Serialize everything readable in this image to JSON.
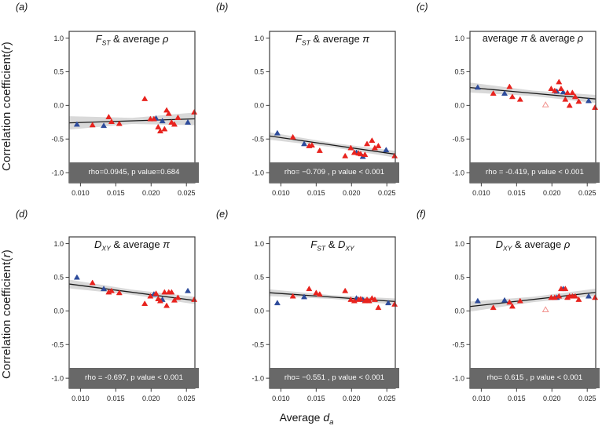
{
  "axes": {
    "y_label_pre": "Correlation coefficient(",
    "y_label_italic": "r",
    "y_label_post": ")",
    "x_label_pre": "Average ",
    "x_label_italic": "d",
    "x_label_sub": "a",
    "y_tick_values": [
      1.0,
      0.5,
      0.0,
      -0.5,
      -1.0
    ],
    "y_tick_labels": [
      "1.0",
      "0.5",
      "0.0",
      "-0.5",
      "-1.0"
    ],
    "x_tick_values": [
      0.01,
      0.015,
      0.02,
      0.025
    ],
    "x_tick_labels": [
      "0.010",
      "0.015",
      "0.020",
      "0.025"
    ]
  },
  "colors": {
    "red": "#e8231e",
    "blue": "#2d4b9b",
    "open_red": "#f2938f",
    "band": "#d9d9d9",
    "line": "#1a1a1a",
    "box": "#3d3d3d",
    "banner_bg": "#686868",
    "banner_text": "#ffffff"
  },
  "chart_data": [
    {
      "id": "a",
      "label": "(a)",
      "type": "scatter",
      "title_segments": [
        {
          "t": "F",
          "s": "i"
        },
        {
          "t": "ST",
          "s": "sub"
        },
        {
          "t": " & average ",
          "s": ""
        },
        {
          "t": "ρ",
          "s": "i"
        }
      ],
      "banner": "rho=0.0945, p value=0.684",
      "xlim": [
        0.0084,
        0.0262
      ],
      "ylim": [
        -1.15,
        1.1
      ],
      "regression": {
        "x": [
          0.0084,
          0.0262
        ],
        "y": [
          -0.26,
          -0.2
        ]
      },
      "band": {
        "x": [
          0.0084,
          0.0173,
          0.0262
        ],
        "half": [
          0.1,
          0.045,
          0.095
        ]
      },
      "series": [
        {
          "name": "blue-filled",
          "color": "#2d4b9b",
          "open": false,
          "points": [
            [
              0.0095,
              -0.28
            ],
            [
              0.0133,
              -0.3
            ],
            [
              0.0207,
              -0.19
            ],
            [
              0.0216,
              -0.23
            ],
            [
              0.0252,
              -0.25
            ]
          ]
        },
        {
          "name": "red-filled",
          "color": "#e8231e",
          "open": false,
          "points": [
            [
              0.0117,
              -0.29
            ],
            [
              0.014,
              -0.17
            ],
            [
              0.0144,
              -0.24
            ],
            [
              0.0155,
              -0.27
            ],
            [
              0.0191,
              0.1
            ],
            [
              0.0199,
              -0.2
            ],
            [
              0.0204,
              -0.2
            ],
            [
              0.021,
              -0.32
            ],
            [
              0.0213,
              -0.38
            ],
            [
              0.0219,
              -0.35
            ],
            [
              0.0222,
              -0.07
            ],
            [
              0.0225,
              -0.12
            ],
            [
              0.0229,
              -0.25
            ],
            [
              0.0233,
              -0.28
            ],
            [
              0.0238,
              -0.18
            ],
            [
              0.0261,
              -0.1
            ]
          ]
        }
      ]
    },
    {
      "id": "b",
      "label": "(b)",
      "type": "scatter",
      "title_segments": [
        {
          "t": "F",
          "s": "i"
        },
        {
          "t": "ST",
          "s": "sub"
        },
        {
          "t": " & average ",
          "s": ""
        },
        {
          "t": "π",
          "s": "i"
        }
      ],
      "banner": "rho= −0.709 , p value < 0.001",
      "xlim": [
        0.0084,
        0.0262
      ],
      "ylim": [
        -1.15,
        1.1
      ],
      "regression": {
        "x": [
          0.0084,
          0.0262
        ],
        "y": [
          -0.455,
          -0.725
        ]
      },
      "band": {
        "x": [
          0.0084,
          0.0173,
          0.0262
        ],
        "half": [
          0.055,
          0.032,
          0.05
        ]
      },
      "series": [
        {
          "name": "blue-filled",
          "color": "#2d4b9b",
          "open": false,
          "points": [
            [
              0.0095,
              -0.41
            ],
            [
              0.0133,
              -0.57
            ],
            [
              0.0207,
              -0.7
            ],
            [
              0.0216,
              -0.76
            ],
            [
              0.0249,
              -0.66
            ]
          ]
        },
        {
          "name": "red-filled",
          "color": "#e8231e",
          "open": false,
          "points": [
            [
              0.0117,
              -0.47
            ],
            [
              0.014,
              -0.6
            ],
            [
              0.0144,
              -0.59
            ],
            [
              0.0155,
              -0.67
            ],
            [
              0.0191,
              -0.75
            ],
            [
              0.0199,
              -0.63
            ],
            [
              0.0204,
              -0.7
            ],
            [
              0.021,
              -0.71
            ],
            [
              0.0213,
              -0.72
            ],
            [
              0.0219,
              -0.73
            ],
            [
              0.0222,
              -0.57
            ],
            [
              0.0229,
              -0.52
            ],
            [
              0.0233,
              -0.63
            ],
            [
              0.0238,
              -0.6
            ],
            [
              0.0261,
              -0.75
            ]
          ]
        }
      ]
    },
    {
      "id": "c",
      "label": "(c)",
      "type": "scatter",
      "title_segments": [
        {
          "t": "average ",
          "s": ""
        },
        {
          "t": "π",
          "s": "i"
        },
        {
          "t": " & average ",
          "s": ""
        },
        {
          "t": "ρ",
          "s": "i"
        }
      ],
      "banner": "rho = -0.419, p value < 0.001",
      "xlim": [
        0.0084,
        0.0262
      ],
      "ylim": [
        -1.15,
        1.1
      ],
      "regression": {
        "x": [
          0.0084,
          0.0262
        ],
        "y": [
          0.265,
          0.095
        ]
      },
      "band": {
        "x": [
          0.0084,
          0.0173,
          0.0262
        ],
        "half": [
          0.075,
          0.04,
          0.06
        ]
      },
      "series": [
        {
          "name": "blue-filled",
          "color": "#2d4b9b",
          "open": false,
          "points": [
            [
              0.0095,
              0.27
            ],
            [
              0.0133,
              0.18
            ],
            [
              0.0207,
              0.21
            ],
            [
              0.0216,
              0.2
            ],
            [
              0.0252,
              0.07
            ]
          ]
        },
        {
          "name": "red-filled",
          "color": "#e8231e",
          "open": false,
          "points": [
            [
              0.0117,
              0.18
            ],
            [
              0.014,
              0.28
            ],
            [
              0.0144,
              0.13
            ],
            [
              0.0155,
              0.09
            ],
            [
              0.0199,
              0.25
            ],
            [
              0.0204,
              0.22
            ],
            [
              0.021,
              0.35
            ],
            [
              0.0213,
              0.25
            ],
            [
              0.0219,
              0.09
            ],
            [
              0.0222,
              0.19
            ],
            [
              0.0225,
              0.0
            ],
            [
              0.0229,
              0.19
            ],
            [
              0.0233,
              0.13
            ],
            [
              0.0238,
              0.06
            ],
            [
              0.0261,
              -0.03
            ]
          ]
        },
        {
          "name": "red-open",
          "color": "#f2938f",
          "open": true,
          "points": [
            [
              0.0191,
              0.01
            ]
          ]
        }
      ]
    },
    {
      "id": "d",
      "label": "(d)",
      "type": "scatter",
      "title_segments": [
        {
          "t": "D",
          "s": "i"
        },
        {
          "t": "XY",
          "s": "sub"
        },
        {
          "t": " & average ",
          "s": ""
        },
        {
          "t": "π",
          "s": "i"
        }
      ],
      "banner": "rho = -0.697, p value < 0.001",
      "xlim": [
        0.0084,
        0.0262
      ],
      "ylim": [
        -1.15,
        1.1
      ],
      "regression": {
        "x": [
          0.0084,
          0.0262
        ],
        "y": [
          0.4,
          0.155
        ]
      },
      "band": {
        "x": [
          0.0084,
          0.0173,
          0.0262
        ],
        "half": [
          0.065,
          0.038,
          0.055
        ]
      },
      "series": [
        {
          "name": "blue-filled",
          "color": "#2d4b9b",
          "open": false,
          "points": [
            [
              0.0095,
              0.5
            ],
            [
              0.0133,
              0.33
            ],
            [
              0.0204,
              0.25
            ],
            [
              0.0216,
              0.17
            ],
            [
              0.0252,
              0.3
            ]
          ]
        },
        {
          "name": "red-filled",
          "color": "#e8231e",
          "open": false,
          "points": [
            [
              0.0117,
              0.42
            ],
            [
              0.014,
              0.28
            ],
            [
              0.0144,
              0.3
            ],
            [
              0.0155,
              0.27
            ],
            [
              0.0191,
              0.11
            ],
            [
              0.0199,
              0.22
            ],
            [
              0.0207,
              0.26
            ],
            [
              0.021,
              0.18
            ],
            [
              0.0213,
              0.15
            ],
            [
              0.0219,
              0.28
            ],
            [
              0.0222,
              0.08
            ],
            [
              0.0225,
              0.28
            ],
            [
              0.0229,
              0.28
            ],
            [
              0.0233,
              0.16
            ],
            [
              0.0238,
              0.2
            ],
            [
              0.0261,
              0.17
            ]
          ]
        }
      ]
    },
    {
      "id": "e",
      "label": "(e)",
      "type": "scatter",
      "title_segments": [
        {
          "t": "F",
          "s": "i"
        },
        {
          "t": "ST",
          "s": "sub"
        },
        {
          "t": " & ",
          "s": ""
        },
        {
          "t": "D",
          "s": "i"
        },
        {
          "t": "XY",
          "s": "sub"
        }
      ],
      "banner": "rho= −0.551 , p value < 0.001",
      "xlim": [
        0.0084,
        0.0262
      ],
      "ylim": [
        -1.15,
        1.1
      ],
      "regression": {
        "x": [
          0.0084,
          0.0262
        ],
        "y": [
          0.27,
          0.14
        ]
      },
      "band": {
        "x": [
          0.0084,
          0.0173,
          0.0262
        ],
        "half": [
          0.05,
          0.028,
          0.045
        ]
      },
      "series": [
        {
          "name": "blue-filled",
          "color": "#2d4b9b",
          "open": false,
          "points": [
            [
              0.0095,
              0.12
            ],
            [
              0.0133,
              0.21
            ],
            [
              0.0207,
              0.19
            ],
            [
              0.0216,
              0.17
            ],
            [
              0.0252,
              0.12
            ]
          ]
        },
        {
          "name": "red-filled",
          "color": "#e8231e",
          "open": false,
          "points": [
            [
              0.0117,
              0.22
            ],
            [
              0.014,
              0.33
            ],
            [
              0.015,
              0.27
            ],
            [
              0.0155,
              0.25
            ],
            [
              0.0191,
              0.3
            ],
            [
              0.0199,
              0.17
            ],
            [
              0.0204,
              0.15
            ],
            [
              0.021,
              0.17
            ],
            [
              0.0213,
              0.18
            ],
            [
              0.0219,
              0.15
            ],
            [
              0.0222,
              0.17
            ],
            [
              0.0225,
              0.15
            ],
            [
              0.0229,
              0.19
            ],
            [
              0.0233,
              0.17
            ],
            [
              0.0238,
              0.05
            ],
            [
              0.0261,
              0.1
            ]
          ]
        }
      ]
    },
    {
      "id": "f",
      "label": "(f)",
      "type": "scatter",
      "title_segments": [
        {
          "t": "D",
          "s": "i"
        },
        {
          "t": "XY",
          "s": "sub"
        },
        {
          "t": " & average ",
          "s": ""
        },
        {
          "t": "ρ",
          "s": "i"
        }
      ],
      "banner": "rho= 0.615 , p value < 0.001",
      "xlim": [
        0.0084,
        0.0262
      ],
      "ylim": [
        -1.15,
        1.1
      ],
      "regression": {
        "x": [
          0.0084,
          0.0262
        ],
        "y": [
          0.065,
          0.275
        ]
      },
      "band": {
        "x": [
          0.0084,
          0.0173,
          0.0262
        ],
        "half": [
          0.075,
          0.04,
          0.055
        ]
      },
      "series": [
        {
          "name": "blue-filled",
          "color": "#2d4b9b",
          "open": false,
          "points": [
            [
              0.0095,
              0.15
            ],
            [
              0.0133,
              0.16
            ],
            [
              0.0207,
              0.2
            ],
            [
              0.0216,
              0.33
            ],
            [
              0.0252,
              0.22
            ]
          ]
        },
        {
          "name": "red-filled",
          "color": "#e8231e",
          "open": false,
          "points": [
            [
              0.0117,
              0.05
            ],
            [
              0.014,
              0.13
            ],
            [
              0.0144,
              0.07
            ],
            [
              0.0155,
              0.15
            ],
            [
              0.0199,
              0.2
            ],
            [
              0.0204,
              0.2
            ],
            [
              0.021,
              0.22
            ],
            [
              0.0213,
              0.33
            ],
            [
              0.0219,
              0.33
            ],
            [
              0.0222,
              0.2
            ],
            [
              0.0225,
              0.22
            ],
            [
              0.0229,
              0.22
            ],
            [
              0.0233,
              0.22
            ],
            [
              0.0238,
              0.17
            ],
            [
              0.0261,
              0.2
            ]
          ]
        },
        {
          "name": "red-open",
          "color": "#f2938f",
          "open": true,
          "points": [
            [
              0.0191,
              0.02
            ]
          ]
        }
      ]
    }
  ]
}
